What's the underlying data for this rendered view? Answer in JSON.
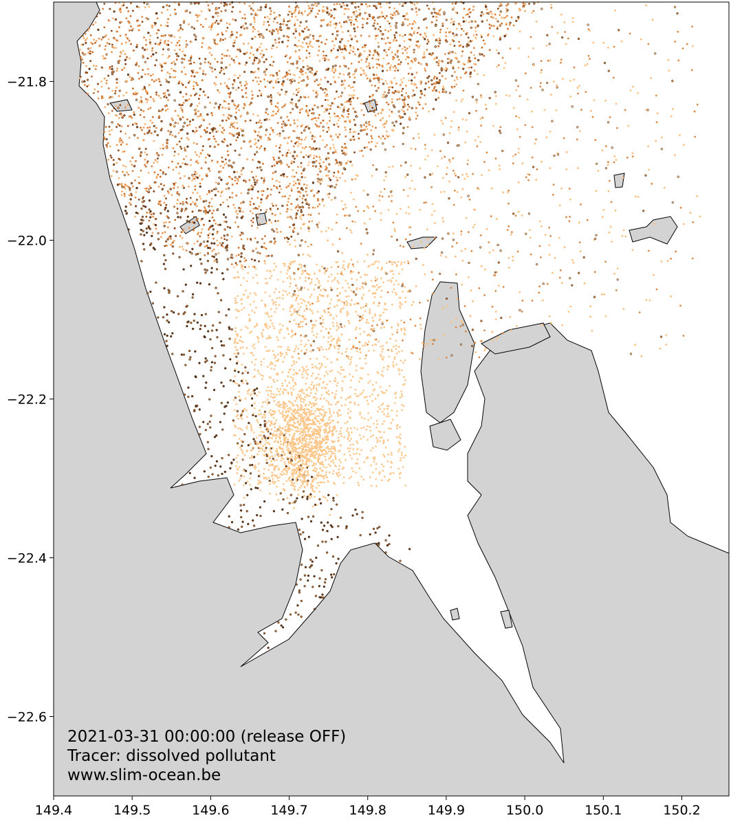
{
  "map": {
    "xlim": [
      149.4,
      150.26
    ],
    "ylim": [
      -22.7,
      -21.7
    ],
    "xticks": [
      149.4,
      149.5,
      149.6,
      149.7,
      149.8,
      149.9,
      {
        "value": 150.0,
        "label": "150.0"
      },
      150.1,
      150.2
    ],
    "yticks": [
      {
        "value": -21.8,
        "label": "−21.8"
      },
      {
        "value": -22.0,
        "label": "−22.0"
      },
      {
        "value": -22.2,
        "label": "−22.2"
      },
      {
        "value": -22.4,
        "label": "−22.4"
      },
      {
        "value": -22.6,
        "label": "−22.6"
      }
    ],
    "annotations": [
      "2021-03-31 00:00:00 (release OFF)",
      "Tracer: dissolved pollutant",
      "www.slim-ocean.be"
    ]
  }
}
